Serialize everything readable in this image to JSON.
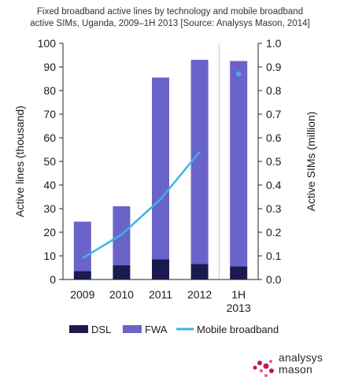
{
  "title_line1": "Fixed broadband active lines by technology and mobile broadband",
  "title_line2": "active SIMs, Uganda, 2009–1H 2013 [Source: Analysys Mason, 2014]",
  "logo": {
    "line1": "analysys",
    "line2": "mason"
  },
  "colors": {
    "dsl": "#1a1a4f",
    "fwa": "#6a63c9",
    "mobile": "#3cb4e6",
    "axis": "#222222"
  },
  "chart_data": {
    "type": "bar",
    "categories": [
      "2009",
      "2010",
      "2011",
      "2012",
      "1H\n2013"
    ],
    "series": [
      {
        "name": "DSL",
        "type": "stacked-bar",
        "axis": "left",
        "values": [
          3.5,
          6,
          8.5,
          6.5,
          5.5
        ]
      },
      {
        "name": "FWA",
        "type": "stacked-bar",
        "axis": "left",
        "values": [
          21,
          25,
          77,
          86.5,
          87
        ]
      },
      {
        "name": "Mobile broadband",
        "type": "line",
        "axis": "right",
        "values": [
          0.09,
          0.19,
          0.34,
          0.54,
          0.87
        ]
      }
    ],
    "ylabel": "Active lines (thousand)",
    "y2label": "Active SIMs (million)",
    "ylim": [
      0,
      100
    ],
    "y2lim": [
      0,
      1.0
    ],
    "yticks": [
      "0",
      "10",
      "20",
      "30",
      "40",
      "50",
      "60",
      "70",
      "80",
      "90",
      "100"
    ],
    "y2ticks": [
      "0.0",
      "0.1",
      "0.2",
      "0.3",
      "0.4",
      "0.5",
      "0.6",
      "0.7",
      "0.8",
      "0.9",
      "1.0"
    ],
    "legend_position": "bottom",
    "grid": false
  }
}
